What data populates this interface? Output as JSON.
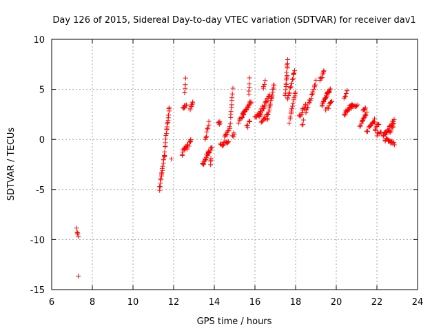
{
  "chart_data": {
    "type": "scatter",
    "title": "Day 126 of 2015, Sidereal Day-to-day VTEC variation (SDTVAR) for receiver dav1",
    "xlabel": "GPS time / hours",
    "ylabel": "SDTVAR / TECUs",
    "xlim": [
      6,
      24
    ],
    "ylim": [
      -15,
      10
    ],
    "xticks": [
      6,
      8,
      10,
      12,
      14,
      16,
      18,
      20,
      22,
      24
    ],
    "yticks": [
      -15,
      -10,
      -5,
      0,
      5,
      10
    ],
    "grid": true,
    "legend": "none",
    "marker": "plus",
    "color": "#ff0000",
    "segments": [
      {
        "x0": 7.24,
        "y0": -9.0,
        "x1": 7.3,
        "y1": -9.7,
        "n": 5
      },
      {
        "x0": 7.3,
        "y0": -13.7,
        "x1": 7.3,
        "y1": -13.7,
        "n": 1
      },
      {
        "x0": 11.3,
        "y0": -5.0,
        "x1": 11.4,
        "y1": -3.5,
        "n": 8
      },
      {
        "x0": 11.4,
        "y0": -3.5,
        "x1": 11.55,
        "y1": -1.5,
        "n": 10
      },
      {
        "x0": 11.55,
        "y0": -1.5,
        "x1": 11.65,
        "y1": 1.0,
        "n": 9
      },
      {
        "x0": 11.65,
        "y0": 1.0,
        "x1": 11.8,
        "y1": 3.2,
        "n": 10
      },
      {
        "x0": 11.9,
        "y0": -1.8,
        "x1": 11.95,
        "y1": -1.8,
        "n": 1
      },
      {
        "x0": 12.4,
        "y0": -1.5,
        "x1": 12.6,
        "y1": -0.6,
        "n": 10
      },
      {
        "x0": 12.45,
        "y0": 3.2,
        "x1": 12.65,
        "y1": 3.3,
        "n": 8
      },
      {
        "x0": 12.55,
        "y0": 4.5,
        "x1": 12.6,
        "y1": 6.1,
        "n": 4
      },
      {
        "x0": 12.6,
        "y0": -1.0,
        "x1": 12.85,
        "y1": -0.1,
        "n": 10
      },
      {
        "x0": 12.8,
        "y0": 3.0,
        "x1": 12.95,
        "y1": 3.8,
        "n": 7
      },
      {
        "x0": 13.4,
        "y0": -2.6,
        "x1": 13.6,
        "y1": -1.8,
        "n": 9
      },
      {
        "x0": 13.55,
        "y0": 0.0,
        "x1": 13.75,
        "y1": 1.7,
        "n": 8
      },
      {
        "x0": 13.6,
        "y0": -1.6,
        "x1": 13.9,
        "y1": -0.8,
        "n": 12
      },
      {
        "x0": 13.8,
        "y0": -2.5,
        "x1": 13.85,
        "y1": -1.8,
        "n": 4
      },
      {
        "x0": 14.2,
        "y0": 1.5,
        "x1": 14.3,
        "y1": 1.8,
        "n": 5
      },
      {
        "x0": 14.3,
        "y0": -0.5,
        "x1": 14.7,
        "y1": -0.3,
        "n": 14
      },
      {
        "x0": 14.5,
        "y0": 0.2,
        "x1": 14.7,
        "y1": 0.8,
        "n": 8
      },
      {
        "x0": 14.75,
        "y0": 1.0,
        "x1": 14.9,
        "y1": 5.0,
        "n": 12
      },
      {
        "x0": 14.9,
        "y0": 0.3,
        "x1": 15.0,
        "y1": 0.6,
        "n": 4
      },
      {
        "x0": 15.2,
        "y0": 1.8,
        "x1": 15.5,
        "y1": 2.8,
        "n": 10
      },
      {
        "x0": 15.4,
        "y0": 2.5,
        "x1": 15.8,
        "y1": 3.8,
        "n": 18
      },
      {
        "x0": 15.6,
        "y0": 1.2,
        "x1": 15.75,
        "y1": 2.0,
        "n": 6
      },
      {
        "x0": 15.7,
        "y0": 4.5,
        "x1": 15.75,
        "y1": 6.1,
        "n": 5
      },
      {
        "x0": 16.0,
        "y0": 2.2,
        "x1": 16.3,
        "y1": 2.5,
        "n": 10
      },
      {
        "x0": 16.2,
        "y0": 2.5,
        "x1": 16.7,
        "y1": 4.3,
        "n": 22
      },
      {
        "x0": 16.3,
        "y0": 1.8,
        "x1": 16.6,
        "y1": 2.4,
        "n": 10
      },
      {
        "x0": 16.4,
        "y0": 5.0,
        "x1": 16.5,
        "y1": 5.8,
        "n": 4
      },
      {
        "x0": 16.6,
        "y0": 2.0,
        "x1": 16.95,
        "y1": 5.5,
        "n": 20
      },
      {
        "x0": 17.5,
        "y0": 4.5,
        "x1": 17.6,
        "y1": 7.9,
        "n": 16
      },
      {
        "x0": 17.6,
        "y0": 4.0,
        "x1": 17.95,
        "y1": 6.9,
        "n": 16
      },
      {
        "x0": 17.7,
        "y0": 1.6,
        "x1": 17.8,
        "y1": 3.0,
        "n": 5
      },
      {
        "x0": 17.8,
        "y0": 2.8,
        "x1": 18.0,
        "y1": 4.8,
        "n": 9
      },
      {
        "x0": 18.2,
        "y0": 2.3,
        "x1": 18.5,
        "y1": 3.5,
        "n": 12
      },
      {
        "x0": 18.3,
        "y0": 1.4,
        "x1": 18.4,
        "y1": 1.9,
        "n": 3
      },
      {
        "x0": 18.5,
        "y0": 2.8,
        "x1": 18.8,
        "y1": 4.3,
        "n": 10
      },
      {
        "x0": 18.8,
        "y0": 4.5,
        "x1": 19.0,
        "y1": 5.8,
        "n": 8
      },
      {
        "x0": 19.2,
        "y0": 6.0,
        "x1": 19.4,
        "y1": 6.8,
        "n": 8
      },
      {
        "x0": 19.3,
        "y0": 3.5,
        "x1": 19.7,
        "y1": 5.0,
        "n": 22
      },
      {
        "x0": 19.5,
        "y0": 3.0,
        "x1": 19.8,
        "y1": 3.8,
        "n": 10
      },
      {
        "x0": 20.4,
        "y0": 4.2,
        "x1": 20.55,
        "y1": 4.9,
        "n": 6
      },
      {
        "x0": 20.4,
        "y0": 2.5,
        "x1": 20.8,
        "y1": 3.6,
        "n": 20
      },
      {
        "x0": 20.7,
        "y0": 3.2,
        "x1": 21.05,
        "y1": 3.4,
        "n": 10
      },
      {
        "x0": 21.15,
        "y0": 1.2,
        "x1": 21.5,
        "y1": 2.7,
        "n": 14
      },
      {
        "x0": 21.3,
        "y0": 2.8,
        "x1": 21.45,
        "y1": 3.3,
        "n": 6
      },
      {
        "x0": 21.5,
        "y0": 0.8,
        "x1": 21.9,
        "y1": 2.0,
        "n": 14
      },
      {
        "x0": 21.9,
        "y0": 1.0,
        "x1": 22.1,
        "y1": 1.6,
        "n": 8
      },
      {
        "x0": 22.0,
        "y0": 0.5,
        "x1": 22.2,
        "y1": 0.9,
        "n": 6
      },
      {
        "x0": 22.3,
        "y0": 0.3,
        "x1": 22.85,
        "y1": 1.9,
        "n": 24
      },
      {
        "x0": 22.4,
        "y0": 0.0,
        "x1": 22.85,
        "y1": -0.4,
        "n": 16
      },
      {
        "x0": 22.6,
        "y0": 0.6,
        "x1": 22.85,
        "y1": 1.4,
        "n": 8
      }
    ]
  }
}
